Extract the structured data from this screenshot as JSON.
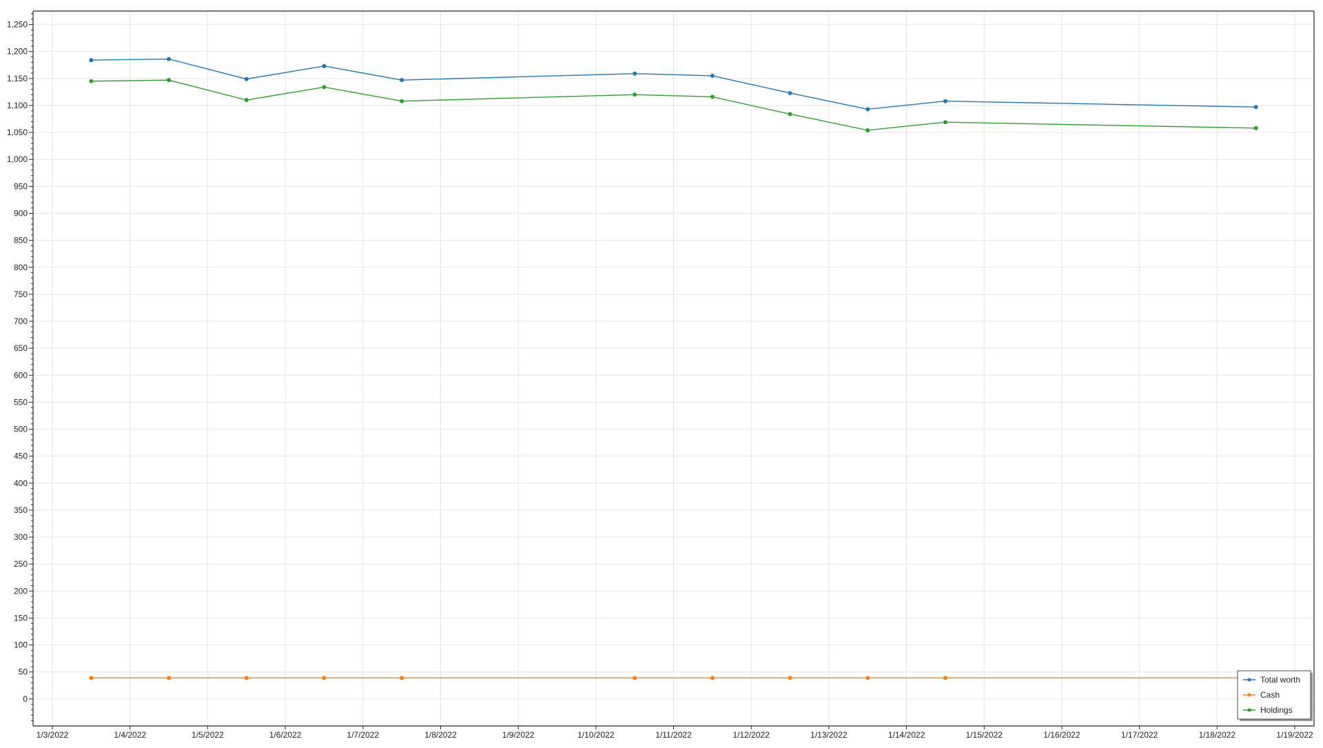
{
  "chart_data": {
    "type": "line",
    "title": "",
    "xlabel": "",
    "ylabel": "",
    "x_is_date": true,
    "xlim": [
      "1/3/2022",
      "1/19/2022"
    ],
    "ylim": [
      -50,
      1275
    ],
    "x_ticks": [
      "1/3/2022",
      "1/4/2022",
      "1/5/2022",
      "1/6/2022",
      "1/7/2022",
      "1/8/2022",
      "1/9/2022",
      "1/10/2022",
      "1/11/2022",
      "1/12/2022",
      "1/13/2022",
      "1/14/2022",
      "1/15/2022",
      "1/16/2022",
      "1/17/2022",
      "1/18/2022",
      "1/19/2022"
    ],
    "y_ticks": [
      0,
      50,
      100,
      150,
      200,
      250,
      300,
      350,
      400,
      450,
      500,
      550,
      600,
      650,
      700,
      750,
      800,
      850,
      900,
      950,
      1000,
      1050,
      1100,
      1150,
      1200,
      1250
    ],
    "y_tick_labels": [
      "0",
      "50",
      "100",
      "150",
      "200",
      "250",
      "300",
      "350",
      "400",
      "450",
      "500",
      "550",
      "600",
      "650",
      "700",
      "750",
      "800",
      "850",
      "900",
      "950",
      "1,000",
      "1,050",
      "1,100",
      "1,150",
      "1,200",
      "1,250"
    ],
    "x": [
      "1/3/2022 12:00",
      "1/4/2022 12:00",
      "1/5/2022 12:00",
      "1/6/2022 12:00",
      "1/7/2022 12:00",
      "1/10/2022 12:00",
      "1/11/2022 12:00",
      "1/12/2022 12:00",
      "1/13/2022 12:00",
      "1/14/2022 12:00",
      "1/18/2022 12:00"
    ],
    "series": [
      {
        "name": "Total worth",
        "color": "#1f77b4",
        "values": [
          1184,
          1186,
          1149,
          1173,
          1147,
          1159,
          1155,
          1123,
          1093,
          1108,
          1097
        ]
      },
      {
        "name": "Cash",
        "color": "#ff7f0e",
        "values": [
          39,
          39,
          39,
          39,
          39,
          39,
          39,
          39,
          39,
          39,
          39
        ]
      },
      {
        "name": "Holdings",
        "color": "#2ca02c",
        "values": [
          1145,
          1147,
          1110,
          1134,
          1108,
          1120,
          1116,
          1084,
          1054,
          1069,
          1058
        ]
      }
    ],
    "grid": true,
    "legend_position": "bottom-right"
  }
}
